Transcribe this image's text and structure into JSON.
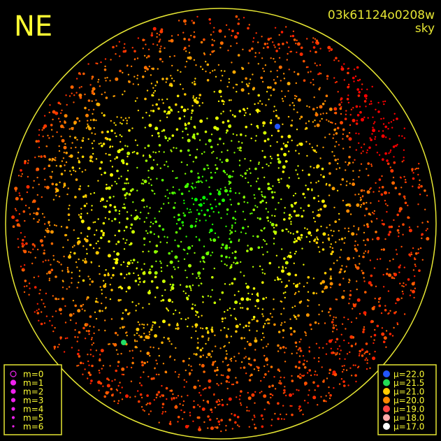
{
  "header": {
    "direction": "NE",
    "frame_id": "03k61124o0208w",
    "frame_type": "sky"
  },
  "legends": {
    "magnitude": [
      "m=0",
      "m=1",
      "m=2",
      "m=3",
      "m=4",
      "m=5",
      "m=6"
    ],
    "surface_brightness": [
      "μ=22.0",
      "μ=21.5",
      "μ=21.0",
      "μ=20.0",
      "μ=19.0",
      "μ=18.0",
      "μ=17.0"
    ]
  }
}
